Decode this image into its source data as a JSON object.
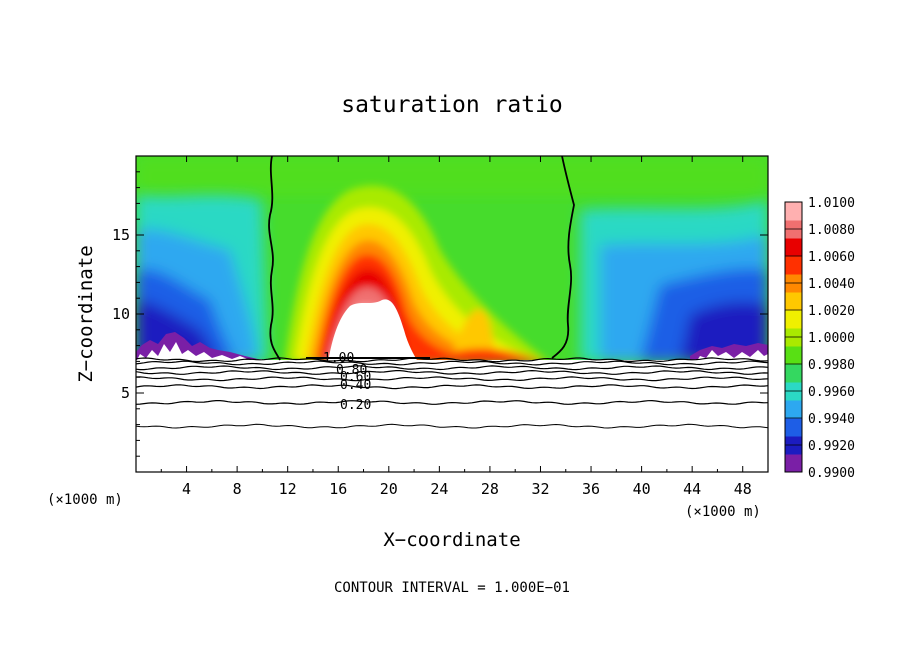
{
  "chart_data": {
    "type": "heatmap",
    "title": "saturation ratio",
    "xlabel": "X−coordinate",
    "ylabel": "Z−coordinate",
    "x_unit_left": "(×1000 m)",
    "x_unit_right": "(×1000 m)",
    "footer": "CONTOUR INTERVAL = 1.000E−01",
    "xlim": [
      0,
      50
    ],
    "ylim": [
      0,
      20
    ],
    "x_ticks": [
      4,
      8,
      12,
      16,
      20,
      24,
      28,
      32,
      36,
      40,
      44,
      48
    ],
    "y_ticks": [
      5,
      10,
      15
    ],
    "x_tick_labels": [
      "4",
      "8",
      "12",
      "16",
      "20",
      "24",
      "28",
      "32",
      "36",
      "40",
      "44",
      "48"
    ],
    "y_tick_labels": [
      "5",
      "10",
      "15"
    ],
    "colorbar": {
      "levels": [
        "0.9900",
        "0.9920",
        "0.9940",
        "0.9960",
        "0.9980",
        "1.0000",
        "1.0020",
        "1.0040",
        "1.0060",
        "1.0080",
        "1.0100"
      ],
      "colors": [
        "#7a1fa6",
        "#1c1cc0",
        "#1e5ee6",
        "#2da8f0",
        "#2bd9c4",
        "#34d860",
        "#58e014",
        "#a9ea00",
        "#f0f000",
        "#ffc800",
        "#ff8800",
        "#ff3000",
        "#e80000",
        "#f07070",
        "#ffb0b0"
      ]
    },
    "contour_labels": [
      "1.00",
      "0.80",
      "0.60",
      "0.40",
      "0.20"
    ],
    "contour_base_heights": [
      2.9,
      4.4,
      5.4,
      5.9,
      6.3,
      6.6,
      6.9,
      7.1
    ]
  }
}
